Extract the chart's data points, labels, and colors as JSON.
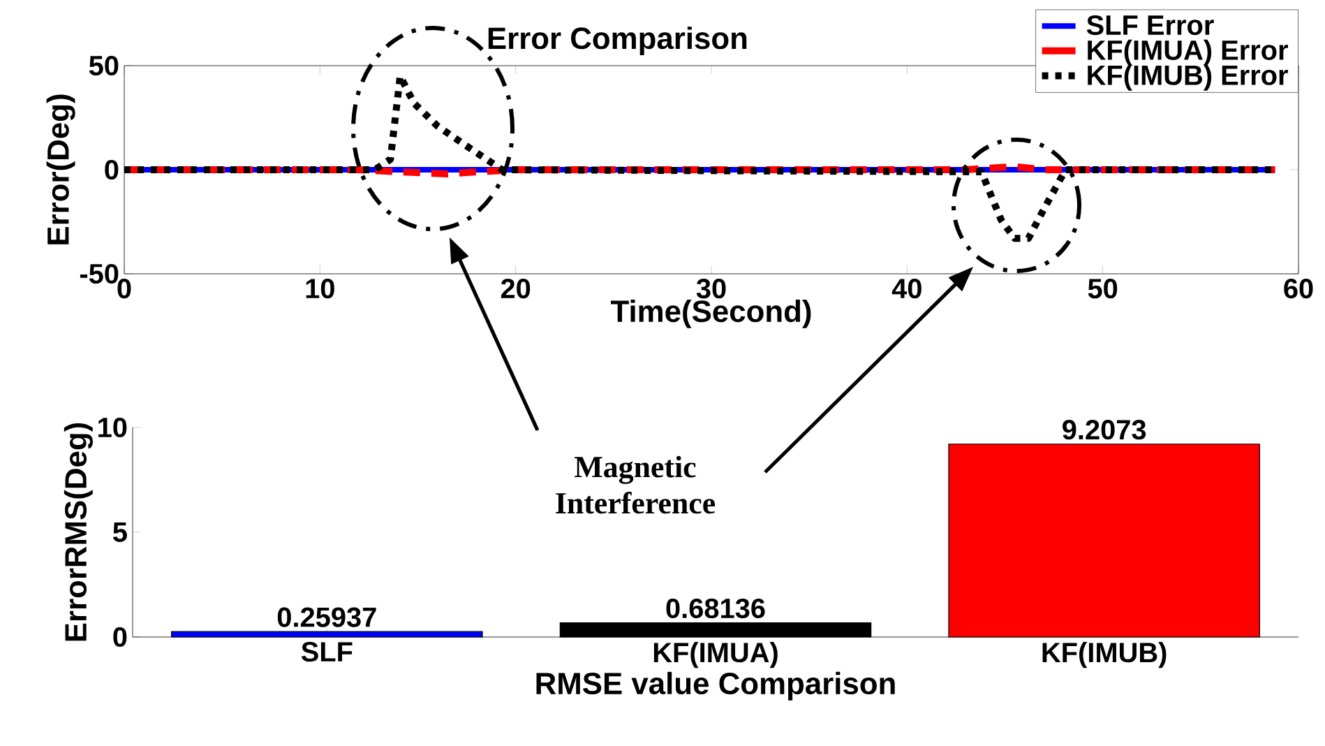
{
  "chart_data": [
    {
      "type": "line",
      "title": "Error Comparison",
      "xlabel": "Time(Second)",
      "ylabel": "Error(Deg)",
      "xlim": [
        0,
        60
      ],
      "xticks": [
        0,
        10,
        20,
        30,
        40,
        50,
        60
      ],
      "ylim": [
        -50,
        50
      ],
      "yticks": [
        -50,
        0,
        50
      ],
      "legend": "top right",
      "annotations": [
        "Magnetic Interference"
      ],
      "series": [
        {
          "name": "SLF Error",
          "color": "#0000ff",
          "line_style": "solid",
          "x": [
            0,
            20,
            40,
            58.8
          ],
          "values": [
            0,
            0,
            0,
            0
          ]
        },
        {
          "name": "KF(IMUA) Error",
          "color": "#ff0000",
          "line_style": "dashed",
          "x": [
            0,
            12,
            14,
            16.5,
            18,
            20,
            43,
            45.5,
            47,
            58.8
          ],
          "values": [
            0,
            0,
            -1,
            -2,
            -1,
            0,
            0,
            1.5,
            0,
            0
          ]
        },
        {
          "name": "KF(IMUB) Error",
          "color": "#000000",
          "line_style": "dotted",
          "x": [
            0,
            12.8,
            13.6,
            14.1,
            14.8,
            16.0,
            17.4,
            19.3,
            43.8,
            44.8,
            45.5,
            46.2,
            47.1,
            48.1,
            58.8
          ],
          "values": [
            0,
            0,
            5,
            45,
            32,
            21,
            12,
            0,
            -1,
            -24,
            -33,
            -33,
            -17,
            0,
            0
          ]
        }
      ]
    },
    {
      "type": "bar",
      "xlabel": "RMSE value Comparison",
      "ylabel": "ErrorRMS(Deg)",
      "categories": [
        "SLF",
        "KF(IMUA)",
        "KF(IMUB)"
      ],
      "values": [
        0.25937,
        0.68136,
        9.2073
      ],
      "colors": [
        "#0000ff",
        "#000000",
        "#ff0000"
      ],
      "ylim": [
        0,
        10
      ],
      "yticks": [
        0,
        5,
        10
      ],
      "data_labels": true
    }
  ]
}
